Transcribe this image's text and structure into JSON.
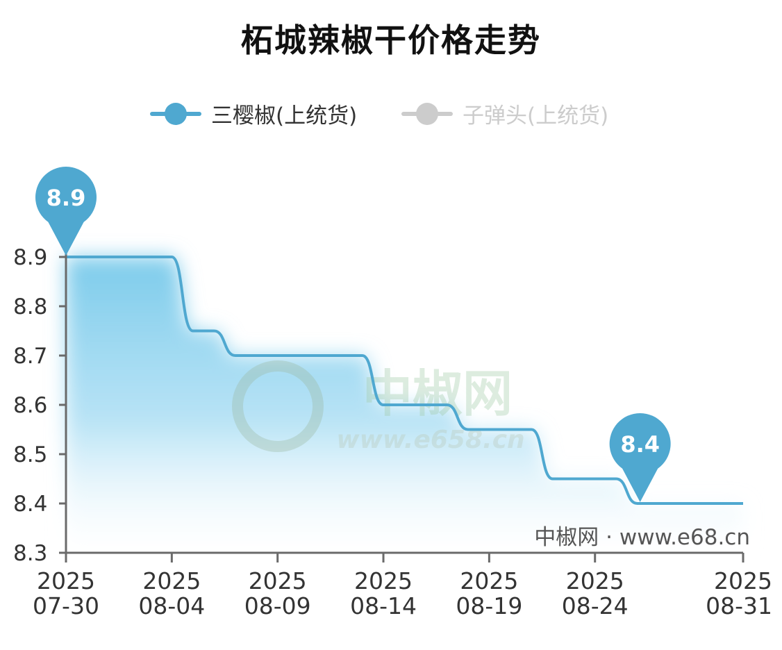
{
  "title": "柘城辣椒干价格走势",
  "legend": [
    {
      "label": "三樱椒(上统货)",
      "color": "#4fa8d0",
      "active": true
    },
    {
      "label": "子弹头(上统货)",
      "color": "#cccccc",
      "active": false
    }
  ],
  "watermark": {
    "brand": "中椒网",
    "url": "www.e658.cn"
  },
  "source_text": "中椒网 · www.e68.cn",
  "colors": {
    "line": "#4fa8d0",
    "fill": "#7ccbeb",
    "axis": "#6a6a6a",
    "marker": "#4fa8d0"
  },
  "chart_data": {
    "type": "area",
    "title": "柘城辣椒干价格走势",
    "xlabel": "",
    "ylabel": "",
    "ylim": [
      8.3,
      8.9
    ],
    "yticks": [
      "8.3",
      "8.4",
      "8.5",
      "8.6",
      "8.7",
      "8.8",
      "8.9"
    ],
    "xticks": [
      {
        "date": "2025-07-30",
        "year": "2025",
        "md": "07-30"
      },
      {
        "date": "2025-08-04",
        "year": "2025",
        "md": "08-04"
      },
      {
        "date": "2025-08-09",
        "year": "2025",
        "md": "08-09"
      },
      {
        "date": "2025-08-14",
        "year": "2025",
        "md": "08-14"
      },
      {
        "date": "2025-08-19",
        "year": "2025",
        "md": "08-19"
      },
      {
        "date": "2025-08-24",
        "year": "2025",
        "md": "08-24"
      },
      {
        "date": "2025-08-31",
        "year": "2025",
        "md": "08-31"
      }
    ],
    "grid": false,
    "legend_position": "top",
    "series": [
      {
        "name": "三樱椒(上统货)",
        "points": [
          {
            "x": "2025-07-30",
            "y": 8.9
          },
          {
            "x": "2025-08-04",
            "y": 8.9
          },
          {
            "x": "2025-08-05",
            "y": 8.75
          },
          {
            "x": "2025-08-06",
            "y": 8.75
          },
          {
            "x": "2025-08-07",
            "y": 8.7
          },
          {
            "x": "2025-08-13",
            "y": 8.7
          },
          {
            "x": "2025-08-14",
            "y": 8.6
          },
          {
            "x": "2025-08-17",
            "y": 8.6
          },
          {
            "x": "2025-08-18",
            "y": 8.55
          },
          {
            "x": "2025-08-21",
            "y": 8.55
          },
          {
            "x": "2025-08-22",
            "y": 8.45
          },
          {
            "x": "2025-08-25",
            "y": 8.45
          },
          {
            "x": "2025-08-26",
            "y": 8.4
          },
          {
            "x": "2025-08-31",
            "y": 8.4
          }
        ]
      }
    ],
    "annotations": [
      {
        "type": "max",
        "x": "2025-07-30",
        "y": 8.9,
        "label": "8.9"
      },
      {
        "type": "min",
        "x": "2025-08-26",
        "y": 8.4,
        "label": "8.4"
      }
    ]
  }
}
